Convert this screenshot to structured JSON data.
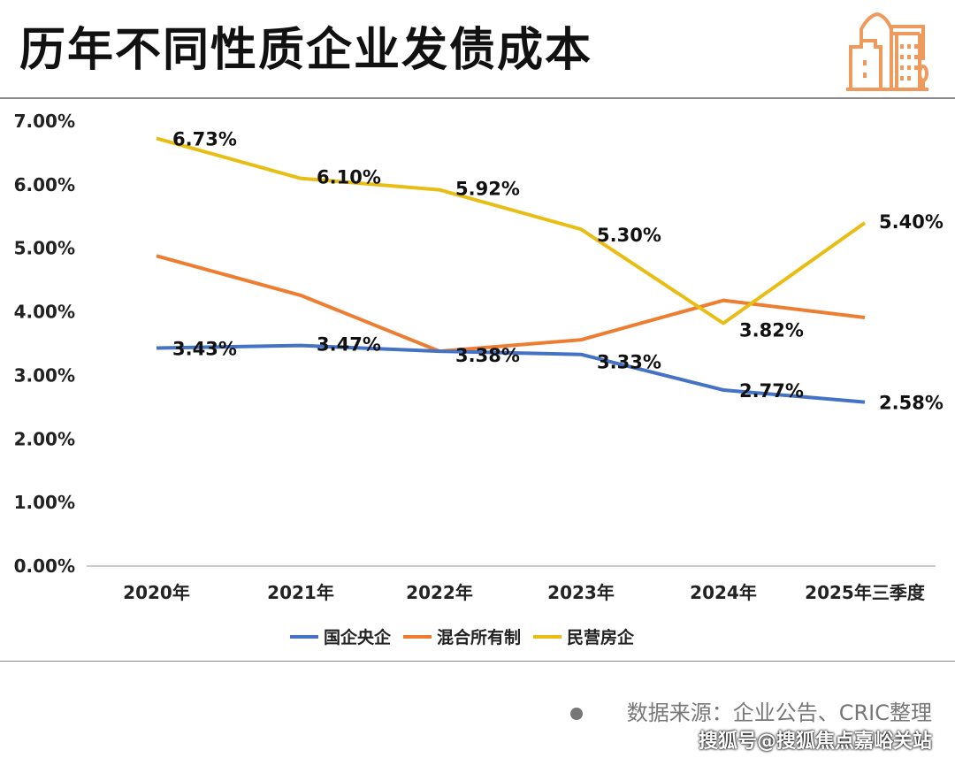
{
  "header": {
    "title": "历年不同性质企业发债成本",
    "icon": "city-buildings-icon",
    "icon_color": "#EE9A5C"
  },
  "source": "数据来源：企业公告、CRIC整理",
  "footer": "搜狐号@搜狐焦点嘉峪关站",
  "chart_data": {
    "type": "line",
    "title": "历年不同性质企业发债成本",
    "categories": [
      "2020年",
      "2021年",
      "2022年",
      "2023年",
      "2024年",
      "2025年三季度"
    ],
    "ylim": [
      0,
      7
    ],
    "yticks": [
      "0.00%",
      "1.00%",
      "2.00%",
      "3.00%",
      "4.00%",
      "5.00%",
      "6.00%",
      "7.00%"
    ],
    "grid": false,
    "legend_position": "bottom",
    "series": [
      {
        "name": "国企央企",
        "color": "#4472C4",
        "values": [
          3.43,
          3.47,
          3.38,
          3.33,
          2.77,
          2.58
        ],
        "labels": [
          "3.43%",
          "3.47%",
          "3.38%",
          "3.33%",
          "2.77%",
          "2.58%"
        ]
      },
      {
        "name": "混合所有制",
        "color": "#ED7D31",
        "values": [
          4.88,
          4.26,
          3.38,
          3.56,
          4.18,
          3.91
        ],
        "labels": []
      },
      {
        "name": "民营房企",
        "color": "#E8BE14",
        "values": [
          6.73,
          6.1,
          5.92,
          5.3,
          3.82,
          5.4
        ],
        "labels": [
          "6.73%",
          "6.10%",
          "5.92%",
          "5.30%",
          "3.82%",
          "5.40%"
        ]
      }
    ]
  }
}
